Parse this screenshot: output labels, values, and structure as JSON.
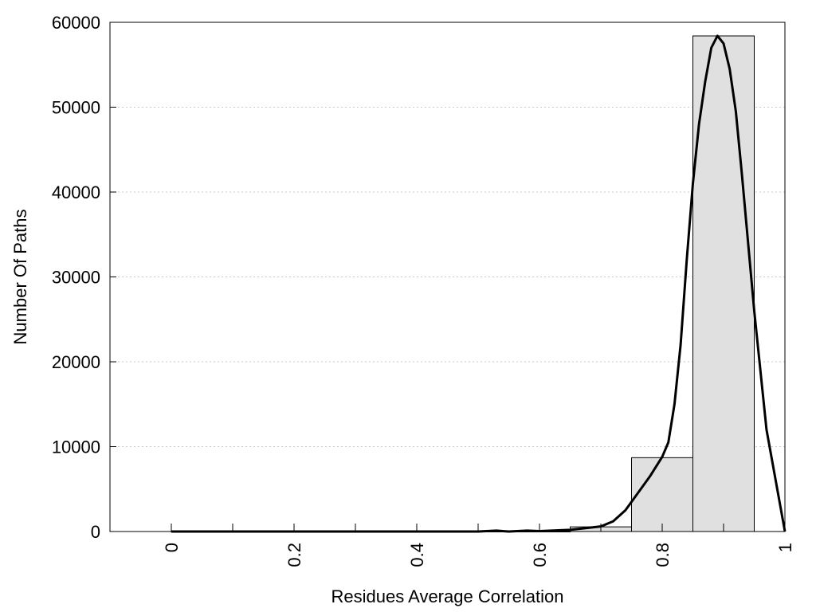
{
  "chart_data": {
    "type": "bar",
    "title": "",
    "xlabel": "Residues Average Correlation",
    "ylabel": "Number Of Paths",
    "xlim": [
      -0.1,
      1.0
    ],
    "ylim": [
      0,
      60000
    ],
    "grid": true,
    "x_ticks": [
      0,
      0.2,
      0.4,
      0.6,
      0.8,
      1
    ],
    "x_tick_labels": [
      "0",
      "0.2",
      "0.4",
      "0.6",
      "0.8",
      "1"
    ],
    "x_minor_ticks": [
      0.1,
      0.3,
      0.5,
      0.7,
      0.9
    ],
    "y_ticks": [
      0,
      10000,
      20000,
      30000,
      40000,
      50000,
      60000
    ],
    "y_tick_labels": [
      "0",
      "10000",
      "20000",
      "30000",
      "40000",
      "50000",
      "60000"
    ],
    "bars": [
      {
        "x0": 0.0,
        "x1": 0.05,
        "value": 0
      },
      {
        "x0": 0.05,
        "x1": 0.15,
        "value": 0
      },
      {
        "x0": 0.15,
        "x1": 0.25,
        "value": 0
      },
      {
        "x0": 0.25,
        "x1": 0.35,
        "value": 0
      },
      {
        "x0": 0.35,
        "x1": 0.45,
        "value": 0
      },
      {
        "x0": 0.45,
        "x1": 0.55,
        "value": 0
      },
      {
        "x0": 0.55,
        "x1": 0.65,
        "value": 0
      },
      {
        "x0": 0.65,
        "x1": 0.75,
        "value": 550
      },
      {
        "x0": 0.75,
        "x1": 0.85,
        "value": 8700
      },
      {
        "x0": 0.85,
        "x1": 0.95,
        "value": 58400
      }
    ],
    "curve": {
      "x": [
        0.0,
        0.1,
        0.2,
        0.3,
        0.4,
        0.5,
        0.53,
        0.55,
        0.58,
        0.6,
        0.65,
        0.7,
        0.72,
        0.74,
        0.76,
        0.78,
        0.8,
        0.81,
        0.82,
        0.83,
        0.84,
        0.85,
        0.86,
        0.87,
        0.88,
        0.89,
        0.9,
        0.91,
        0.92,
        0.93,
        0.95,
        0.97,
        1.0
      ],
      "y": [
        0,
        0,
        0,
        0,
        0,
        0,
        100,
        0,
        100,
        50,
        200,
        600,
        1200,
        2500,
        4500,
        6500,
        8800,
        10500,
        15000,
        22000,
        32000,
        41000,
        48000,
        53000,
        57000,
        58400,
        57500,
        54500,
        49500,
        42000,
        26000,
        12000,
        0
      ]
    },
    "colors": {
      "bar_fill": "#e0e0e0",
      "bar_stroke": "#000000",
      "curve": "#000000",
      "grid": "#c8c8c8"
    }
  }
}
